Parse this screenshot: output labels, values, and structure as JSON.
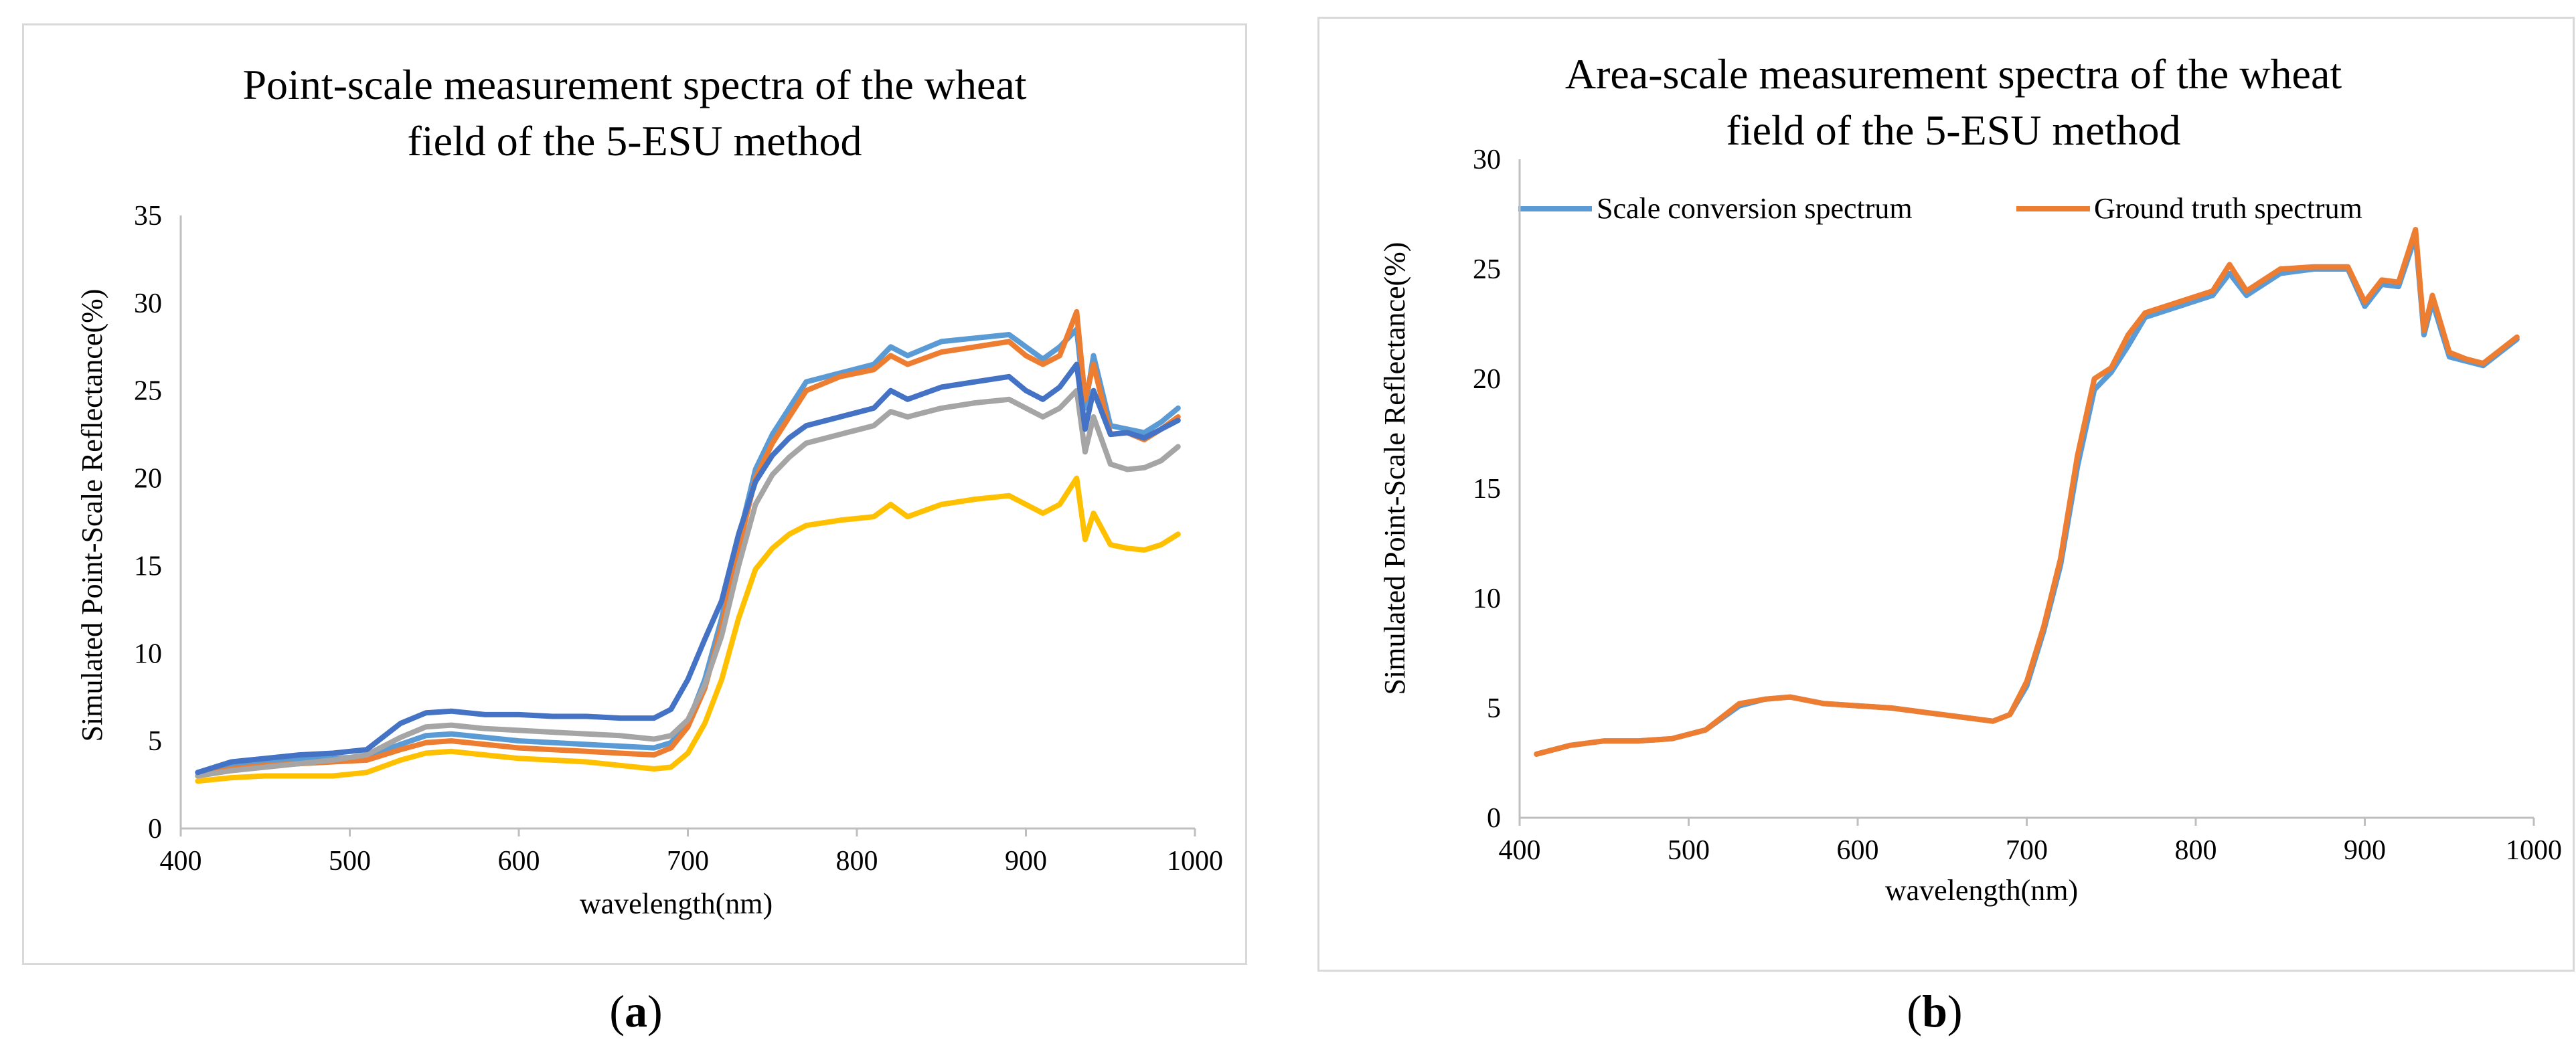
{
  "captions": {
    "a": "a",
    "b": "b"
  },
  "chart_data": [
    {
      "type": "line",
      "title_line1": "Point-scale measurement spectra of the wheat",
      "title_line2": "field of the 5-ESU method",
      "xlabel": "wavelength(nm)",
      "ylabel": "Simulated Point-Scale Reflectance(%)",
      "xlim": [
        400,
        1000
      ],
      "ylim": [
        0,
        35
      ],
      "xticks": [
        400,
        500,
        600,
        700,
        800,
        900,
        1000
      ],
      "yticks": [
        0,
        5,
        10,
        15,
        20,
        25,
        30,
        35
      ],
      "grid": false,
      "legend": "none",
      "x": [
        410,
        430,
        450,
        470,
        490,
        510,
        530,
        545,
        560,
        580,
        600,
        620,
        640,
        660,
        680,
        690,
        700,
        710,
        720,
        730,
        740,
        750,
        760,
        770,
        790,
        810,
        820,
        830,
        850,
        870,
        890,
        900,
        910,
        920,
        930,
        935,
        940,
        950,
        960,
        970,
        980,
        990
      ],
      "series": [
        {
          "color": "#5b9bd5",
          "values": [
            3.2,
            3.6,
            3.8,
            3.9,
            4.0,
            4.1,
            4.8,
            5.3,
            5.4,
            5.2,
            5.0,
            4.9,
            4.8,
            4.7,
            4.6,
            4.9,
            6.0,
            8.5,
            12.0,
            16.5,
            20.5,
            22.5,
            24.0,
            25.5,
            26.0,
            26.5,
            27.5,
            27.0,
            27.8,
            28.0,
            28.2,
            27.5,
            26.8,
            27.5,
            28.5,
            24.0,
            27.0,
            23.0,
            22.8,
            22.6,
            23.2,
            24.0
          ]
        },
        {
          "color": "#ed7d31",
          "values": [
            3.0,
            3.4,
            3.6,
            3.7,
            3.8,
            3.9,
            4.5,
            4.9,
            5.0,
            4.8,
            4.6,
            4.5,
            4.4,
            4.3,
            4.2,
            4.6,
            5.8,
            8.0,
            11.5,
            16.0,
            20.0,
            22.0,
            23.5,
            25.0,
            25.8,
            26.2,
            27.0,
            26.5,
            27.2,
            27.5,
            27.8,
            27.0,
            26.5,
            27.0,
            29.5,
            24.5,
            26.5,
            22.5,
            22.6,
            22.2,
            22.8,
            23.5
          ]
        },
        {
          "color": "#a5a5a5",
          "values": [
            3.0,
            3.3,
            3.5,
            3.7,
            3.9,
            4.2,
            5.2,
            5.8,
            5.9,
            5.7,
            5.6,
            5.5,
            5.4,
            5.3,
            5.1,
            5.3,
            6.2,
            8.2,
            11.0,
            15.0,
            18.5,
            20.2,
            21.2,
            22.0,
            22.5,
            23.0,
            23.8,
            23.5,
            24.0,
            24.3,
            24.5,
            24.0,
            23.5,
            24.0,
            25.0,
            21.5,
            23.5,
            20.8,
            20.5,
            20.6,
            21.0,
            21.8
          ]
        },
        {
          "color": "#ffc000",
          "values": [
            2.7,
            2.9,
            3.0,
            3.0,
            3.0,
            3.2,
            3.9,
            4.3,
            4.4,
            4.2,
            4.0,
            3.9,
            3.8,
            3.6,
            3.4,
            3.5,
            4.3,
            6.0,
            8.5,
            12.0,
            14.8,
            16.0,
            16.8,
            17.3,
            17.6,
            17.8,
            18.5,
            17.8,
            18.5,
            18.8,
            19.0,
            18.5,
            18.0,
            18.5,
            20.0,
            16.5,
            18.0,
            16.2,
            16.0,
            15.9,
            16.2,
            16.8
          ]
        },
        {
          "color": "#4472c4",
          "values": [
            3.2,
            3.8,
            4.0,
            4.2,
            4.3,
            4.5,
            6.0,
            6.6,
            6.7,
            6.5,
            6.5,
            6.4,
            6.4,
            6.3,
            6.3,
            6.8,
            8.5,
            10.8,
            13.0,
            16.8,
            19.8,
            21.3,
            22.3,
            23.0,
            23.5,
            24.0,
            25.0,
            24.5,
            25.2,
            25.5,
            25.8,
            25.0,
            24.5,
            25.2,
            26.5,
            22.8,
            25.0,
            22.5,
            22.6,
            22.3,
            22.8,
            23.3
          ]
        }
      ]
    },
    {
      "type": "line",
      "title_line1": "Area-scale measurement spectra of the wheat",
      "title_line2": "field of the 5-ESU method",
      "xlabel": "wavelength(nm)",
      "ylabel": "Simulated Point-Scale Reflectance(%)",
      "xlim": [
        400,
        1000
      ],
      "ylim": [
        0,
        30
      ],
      "xticks": [
        400,
        500,
        600,
        700,
        800,
        900,
        1000
      ],
      "yticks": [
        0,
        5,
        10,
        15,
        20,
        25,
        30
      ],
      "grid": false,
      "legend": "top",
      "x": [
        410,
        430,
        450,
        470,
        490,
        510,
        530,
        545,
        560,
        580,
        600,
        620,
        640,
        660,
        680,
        690,
        700,
        710,
        720,
        730,
        740,
        750,
        760,
        770,
        790,
        810,
        820,
        830,
        850,
        870,
        890,
        900,
        910,
        920,
        930,
        935,
        940,
        950,
        960,
        970,
        980,
        990
      ],
      "series": [
        {
          "name": "Scale conversion spectrum",
          "color": "#5b9bd5",
          "values": [
            2.9,
            3.3,
            3.5,
            3.5,
            3.6,
            4.0,
            5.1,
            5.4,
            5.5,
            5.2,
            5.1,
            5.0,
            4.8,
            4.6,
            4.4,
            4.7,
            6.0,
            8.5,
            11.5,
            16.0,
            19.5,
            20.3,
            21.5,
            22.8,
            23.3,
            23.8,
            24.8,
            23.8,
            24.8,
            25.0,
            25.0,
            23.3,
            24.3,
            24.2,
            26.5,
            22.0,
            23.5,
            21.0,
            20.8,
            20.6,
            21.2,
            21.8
          ]
        },
        {
          "name": "Ground truth spectrum",
          "color": "#ed7d31",
          "values": [
            2.9,
            3.3,
            3.5,
            3.5,
            3.6,
            4.0,
            5.2,
            5.4,
            5.5,
            5.2,
            5.1,
            5.0,
            4.8,
            4.6,
            4.4,
            4.7,
            6.2,
            8.7,
            11.8,
            16.5,
            20.0,
            20.5,
            22.0,
            23.0,
            23.5,
            24.0,
            25.2,
            24.0,
            25.0,
            25.1,
            25.1,
            23.5,
            24.5,
            24.4,
            26.8,
            22.2,
            23.8,
            21.2,
            20.9,
            20.7,
            21.3,
            21.9
          ]
        }
      ]
    }
  ]
}
